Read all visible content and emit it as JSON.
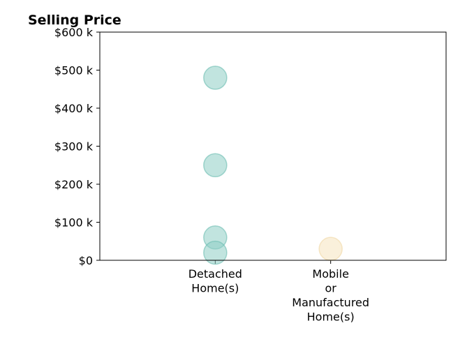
{
  "chart_data": {
    "type": "scatter",
    "title": "Selling Price",
    "xlabel": "",
    "ylabel": "",
    "categories": [
      [
        "Detached",
        "Home(s)"
      ],
      [
        "Mobile",
        "or",
        "Manufactured",
        "Home(s)"
      ]
    ],
    "y_ticks": [
      {
        "value": 0,
        "label": "$0"
      },
      {
        "value": 100000,
        "label": "$100 k"
      },
      {
        "value": 200000,
        "label": "$200 k"
      },
      {
        "value": 300000,
        "label": "$300 k"
      },
      {
        "value": 400000,
        "label": "$400 k"
      },
      {
        "value": 500000,
        "label": "$500 k"
      },
      {
        "value": 600000,
        "label": "$600 k"
      }
    ],
    "ylim": [
      0,
      600000
    ],
    "grid": false,
    "legend": "none",
    "series": [
      {
        "category_index": 0,
        "color": "#8ecdc4",
        "stroke": "#6bbdb1",
        "values": [
          480000,
          250000,
          60000,
          20000
        ]
      },
      {
        "category_index": 1,
        "color": "#f6e4bd",
        "stroke": "#f0d7a3",
        "values": [
          30000
        ]
      }
    ]
  }
}
